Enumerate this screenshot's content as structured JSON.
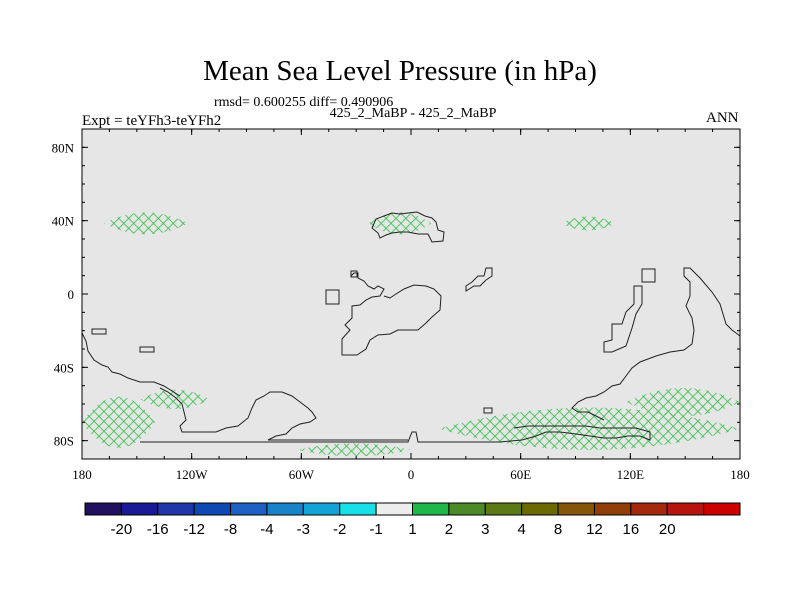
{
  "chart_data": {
    "type": "heatmap",
    "title": "Mean Sea Level Pressure (in hPa)",
    "stats_line": "rmsd= 0.600255 diff= 0.490906",
    "subtitle": "425_2_MaBP - 425_2_MaBP",
    "left_string": "Expt = teYFh3-teYFh2",
    "right_string": "ANN",
    "x_range": [
      -180,
      180
    ],
    "y_range": [
      -90,
      90
    ],
    "x_ticks": [
      {
        "value": -180,
        "label": "180"
      },
      {
        "value": -120,
        "label": "120W"
      },
      {
        "value": -60,
        "label": "60W"
      },
      {
        "value": 0,
        "label": "0"
      },
      {
        "value": 60,
        "label": "60E"
      },
      {
        "value": 120,
        "label": "120E"
      },
      {
        "value": 180,
        "label": "180"
      }
    ],
    "y_ticks": [
      {
        "value": 80,
        "label": "80N"
      },
      {
        "value": 40,
        "label": "40N"
      },
      {
        "value": 0,
        "label": "0"
      },
      {
        "value": -40,
        "label": "40S"
      },
      {
        "value": -80,
        "label": "80S"
      }
    ],
    "background_color": "#e6e6e6",
    "colorbar": {
      "colors": [
        "#22115e",
        "#1a1a96",
        "#1f37a8",
        "#0f47b3",
        "#1e5fc3",
        "#1883c9",
        "#12a3d7",
        "#17e0e8",
        "#ededed",
        "#1eb84a",
        "#4b8a26",
        "#5b7a16",
        "#6a6a00",
        "#85560a",
        "#913e0a",
        "#a5280e",
        "#b8140e",
        "#cc0000"
      ],
      "labels": [
        "-20",
        "-16",
        "-12",
        "-8",
        "-4",
        "-3",
        "-2",
        "-1",
        "1",
        "2",
        "3",
        "4",
        "8",
        "12",
        "16",
        "20"
      ]
    },
    "positive_regions": [
      {
        "name": "north-pacific-high",
        "lon": [
          -168,
          -122
        ],
        "lat": [
          30,
          47
        ]
      },
      {
        "name": "azores-high",
        "lon": [
          -23,
          11
        ],
        "lat": [
          30,
          47
        ]
      },
      {
        "name": "west-pacific-high",
        "lon": [
          82,
          112
        ],
        "lat": [
          33,
          44
        ]
      },
      {
        "name": "south-pacific-high",
        "lon": [
          -180,
          -140
        ],
        "lat": [
          -90,
          -50
        ]
      },
      {
        "name": "south-atlantic-patch",
        "lon": [
          -148,
          -110
        ],
        "lat": [
          -65,
          -50
        ]
      },
      {
        "name": "antarctic-low-band",
        "lon": [
          15,
          180
        ],
        "lat": [
          -90,
          -57
        ]
      },
      {
        "name": "south-indian-high",
        "lon": [
          118,
          180
        ],
        "lat": [
          -70,
          -48
        ]
      },
      {
        "name": "ross-sea-patch",
        "lon": [
          -62,
          0
        ],
        "lat": [
          -90,
          -80
        ]
      }
    ]
  }
}
